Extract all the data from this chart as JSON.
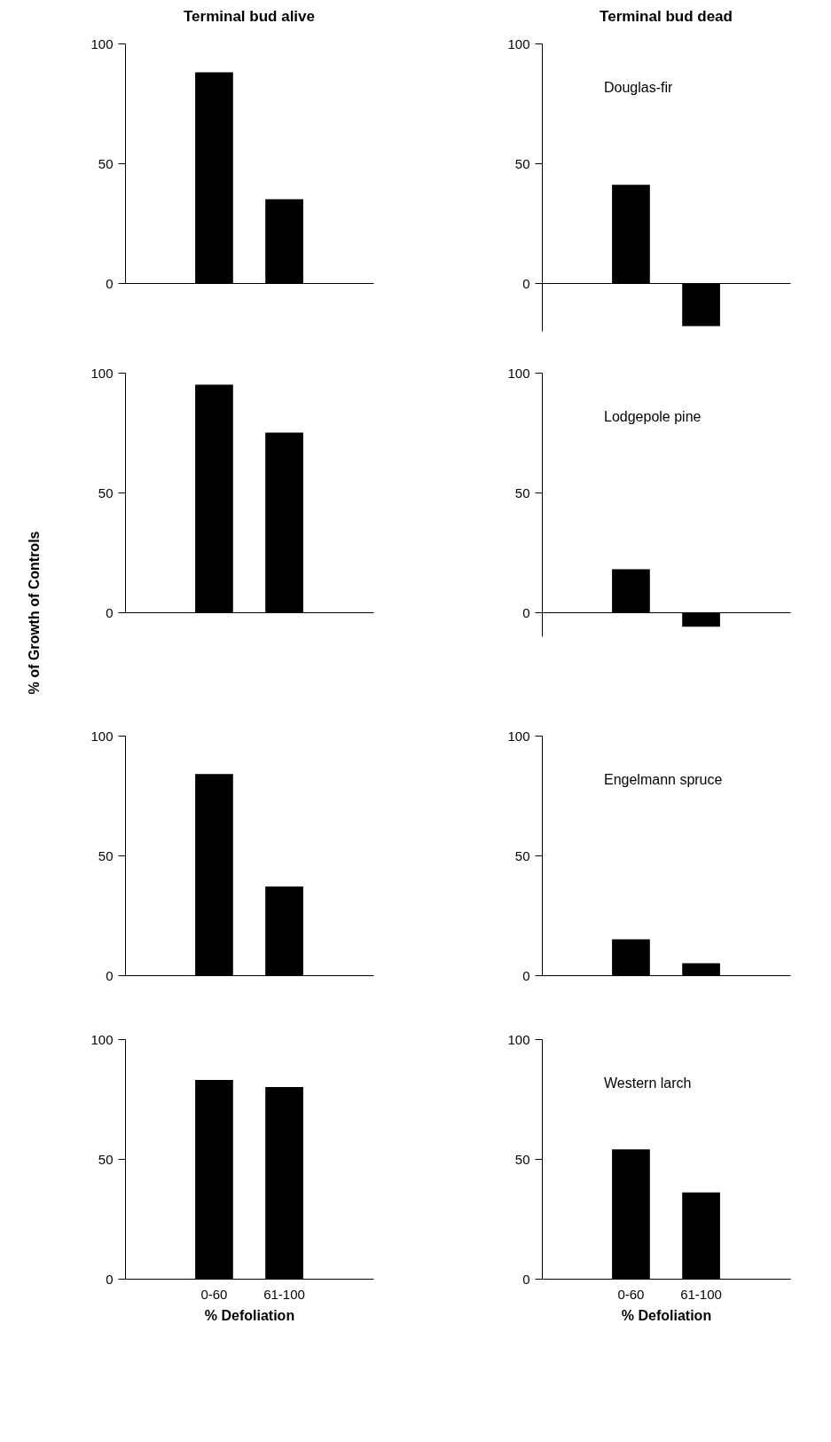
{
  "chart_data": [
    {
      "type": "bar",
      "title": "Terminal bud alive",
      "categories": [
        null,
        null
      ],
      "values": [
        88,
        35
      ],
      "color": "#000000",
      "ylim": [
        0,
        100
      ],
      "yticks": [
        0,
        50,
        100
      ]
    },
    {
      "type": "bar",
      "title": "Terminal bud dead",
      "annotations": [
        "Douglas-fir"
      ],
      "categories": [
        null,
        null
      ],
      "values": [
        41,
        -18
      ],
      "color": "#000000",
      "ylim": [
        -20,
        100
      ],
      "yticks": [
        0,
        50,
        100
      ]
    },
    {
      "type": "bar",
      "ylabel": "% of Growth of Controls",
      "categories": [
        null,
        null
      ],
      "values": [
        95,
        75
      ],
      "color": "#000000",
      "ylim": [
        0,
        100
      ],
      "yticks": [
        0,
        50,
        100
      ]
    },
    {
      "type": "bar",
      "annotations": [
        "Lodgepole pine"
      ],
      "categories": [
        null,
        null
      ],
      "values": [
        18,
        -6
      ],
      "color": "#000000",
      "ylim": [
        -10,
        100
      ],
      "yticks": [
        0,
        50,
        100
      ]
    },
    {
      "type": "bar",
      "categories": [
        null,
        null
      ],
      "values": [
        84,
        37
      ],
      "color": "#000000",
      "ylim": [
        0,
        100
      ],
      "yticks": [
        0,
        50,
        100
      ]
    },
    {
      "type": "bar",
      "annotations": [
        "Engelmann spruce"
      ],
      "categories": [
        null,
        null
      ],
      "values": [
        15,
        5
      ],
      "color": "#000000",
      "ylim": [
        0,
        100
      ],
      "yticks": [
        0,
        50,
        100
      ]
    },
    {
      "type": "bar",
      "xlabel": "% Defoliation",
      "categories": [
        "0-60",
        "61-100"
      ],
      "values": [
        83,
        80
      ],
      "color": "#000000",
      "ylim": [
        0,
        100
      ],
      "yticks": [
        0,
        50,
        100
      ]
    },
    {
      "type": "bar",
      "xlabel": "% Defoliation",
      "annotations": [
        "Western larch"
      ],
      "categories": [
        "0-60",
        "61-100"
      ],
      "values": [
        54,
        36
      ],
      "color": "#000000",
      "ylim": [
        0,
        100
      ],
      "yticks": [
        0,
        50,
        100
      ]
    }
  ]
}
